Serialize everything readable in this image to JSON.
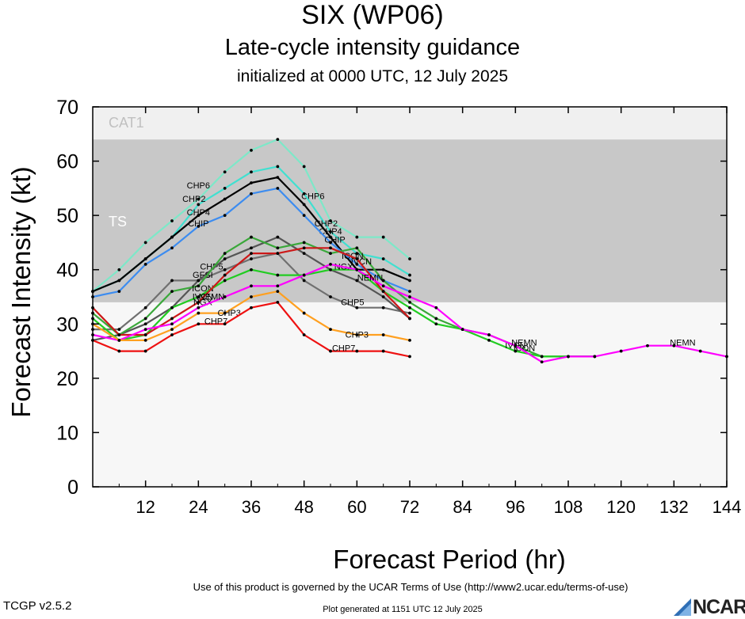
{
  "header": {
    "title": "SIX (WP06)",
    "subtitle": "Late-cycle intensity guidance",
    "init": "initialized at 0000 UTC, 12 July 2025"
  },
  "footer": {
    "terms": "Use of this product is governed by the UCAR Terms of Use (http://www2.ucar.edu/terms-of-use)",
    "version": "TCGP v2.5.2",
    "generated": "Plot generated at 1151 UTC   12 July 2025",
    "logo": "NCAR",
    "logo_icon": "ncar-logo-icon"
  },
  "chart_data": {
    "type": "line",
    "xlabel": "Forecast Period (hr)",
    "ylabel": "Forecast Intensity (kt)",
    "xlim": [
      0,
      144
    ],
    "ylim": [
      0,
      70
    ],
    "xticks": [
      12,
      24,
      36,
      48,
      60,
      72,
      84,
      96,
      108,
      120,
      132,
      144
    ],
    "yticks": [
      0,
      10,
      20,
      30,
      40,
      50,
      60,
      70
    ],
    "bands": [
      {
        "label": "TS",
        "from": 34,
        "to": 64,
        "color": "#c8c8c8"
      },
      {
        "label": "CAT1",
        "from": 64,
        "to": 70,
        "color": "#f0f0f0"
      }
    ],
    "background": "#f7f7f7",
    "series": [
      {
        "name": "CHP6",
        "color": "#7de8c8",
        "x": [
          0,
          6,
          12,
          18,
          24,
          30,
          36,
          42,
          48,
          54,
          60,
          66,
          72
        ],
        "y": [
          36,
          40,
          45,
          49,
          53,
          58,
          62,
          64,
          59,
          49,
          46,
          46,
          42
        ],
        "labels": [
          {
            "x": 24,
            "y": 55
          },
          {
            "x": 50,
            "y": 53
          }
        ]
      },
      {
        "name": "CHP2",
        "color": "#40e0d0",
        "x": [
          0,
          6,
          12,
          18,
          24,
          30,
          36,
          42,
          48,
          54,
          60,
          66,
          72
        ],
        "y": [
          36,
          38,
          42,
          46,
          52,
          55,
          58,
          59,
          54,
          47,
          43,
          42,
          39
        ],
        "labels": [
          {
            "x": 23,
            "y": 52.5
          },
          {
            "x": 53,
            "y": 48
          }
        ]
      },
      {
        "name": "CHP4",
        "color": "#000000",
        "x": [
          0,
          6,
          12,
          18,
          24,
          30,
          36,
          42,
          48,
          54,
          60,
          66,
          72
        ],
        "y": [
          36,
          38,
          42,
          46,
          50,
          53,
          56,
          57,
          52,
          46,
          40,
          40,
          38
        ],
        "labels": [
          {
            "x": 24,
            "y": 50
          },
          {
            "x": 54,
            "y": 46.5
          }
        ]
      },
      {
        "name": "CHIP",
        "color": "#3c8cf0",
        "x": [
          0,
          6,
          12,
          18,
          24,
          30,
          36,
          42,
          48,
          54,
          60,
          66,
          72
        ],
        "y": [
          35,
          36,
          41,
          44,
          48,
          50,
          54,
          55,
          50,
          45,
          41,
          38,
          36
        ],
        "labels": [
          {
            "x": 24,
            "y": 48
          },
          {
            "x": 55,
            "y": 45
          }
        ]
      },
      {
        "name": "CHP5",
        "color": "#707070",
        "x": [
          0,
          6,
          12,
          18,
          24,
          30,
          36,
          42,
          48,
          54,
          60,
          66,
          72
        ],
        "y": [
          29,
          29,
          33,
          38,
          38,
          40,
          42,
          43,
          38,
          35,
          33,
          33,
          32
        ],
        "labels": [
          {
            "x": 27,
            "y": 40
          },
          {
            "x": 59,
            "y": 33.5
          }
        ]
      },
      {
        "name": "GFSI",
        "color": "#555555",
        "x": [
          0,
          6,
          12,
          18,
          24,
          30,
          36,
          42,
          48,
          54,
          60,
          66,
          72
        ],
        "y": [
          27,
          28,
          30,
          33,
          38,
          42,
          44,
          46,
          43,
          40,
          38,
          35,
          31
        ],
        "labels": [
          {
            "x": 25,
            "y": 38.5
          }
        ]
      },
      {
        "name": "ICON",
        "color": "#3aa83a",
        "x": [
          0,
          6,
          12,
          18,
          24,
          30,
          36,
          42,
          48,
          54,
          60,
          66,
          72,
          78,
          84,
          90,
          96,
          102,
          108,
          114
        ],
        "y": [
          32,
          28,
          31,
          36,
          37,
          43,
          46,
          44,
          45,
          43,
          44,
          38,
          34,
          31,
          29,
          28,
          26,
          24,
          24,
          24
        ],
        "labels": [
          {
            "x": 25,
            "y": 36
          },
          {
            "x": 59,
            "y": 42
          },
          {
            "x": 98,
            "y": 25
          }
        ]
      },
      {
        "name": "IVCN",
        "color": "#22cc22",
        "x": [
          0,
          6,
          12,
          18,
          24,
          30,
          36,
          42,
          48,
          54,
          60,
          66,
          72,
          78,
          84,
          90,
          96,
          102,
          108,
          114
        ],
        "y": [
          31,
          27,
          28,
          33,
          35,
          38,
          40,
          39,
          39,
          40,
          40,
          36,
          33,
          30,
          29,
          27,
          25,
          24,
          24,
          24
        ],
        "labels": [
          {
            "x": 25,
            "y": 34.5
          },
          {
            "x": 61,
            "y": 41
          },
          {
            "x": 96,
            "y": 25.5
          }
        ]
      },
      {
        "name": "NGX",
        "color": "#cc1818",
        "x": [
          0,
          6,
          12,
          18,
          24,
          30,
          36,
          42,
          48,
          54,
          60,
          66,
          72
        ],
        "y": [
          33,
          28,
          28,
          31,
          34,
          39,
          43,
          43,
          44,
          44,
          42,
          36,
          31
        ],
        "labels": [
          {
            "x": 25,
            "y": 33.5
          },
          {
            "x": 57,
            "y": 40
          }
        ]
      },
      {
        "name": "NEMN",
        "color": "#ff00ff",
        "x": [
          0,
          6,
          12,
          18,
          24,
          30,
          36,
          42,
          48,
          54,
          60,
          66,
          72,
          78,
          84,
          90,
          96,
          102,
          108,
          114,
          120,
          126,
          132,
          138,
          144
        ],
        "y": [
          28,
          27,
          29,
          30,
          33,
          35,
          37,
          37,
          39,
          41,
          40,
          37,
          35,
          33,
          29,
          28,
          26,
          23,
          24,
          24,
          25,
          26,
          26,
          25,
          24
        ],
        "labels": [
          {
            "x": 27,
            "y": 34.5
          },
          {
            "x": 63,
            "y": 38
          },
          {
            "x": 98,
            "y": 26
          },
          {
            "x": 134,
            "y": 26
          }
        ]
      },
      {
        "name": "CHP3",
        "color": "#ffa020",
        "x": [
          0,
          6,
          12,
          18,
          24,
          30,
          36,
          42,
          48,
          54,
          60,
          66,
          72
        ],
        "y": [
          30,
          27,
          27,
          29,
          32,
          32,
          35,
          36,
          32,
          29,
          28,
          28,
          27
        ],
        "labels": [
          {
            "x": 31,
            "y": 31.5
          },
          {
            "x": 60,
            "y": 27.5
          }
        ]
      },
      {
        "name": "CHP7",
        "color": "#ee1111",
        "x": [
          0,
          6,
          12,
          18,
          24,
          30,
          36,
          42,
          48,
          54,
          60,
          66,
          72
        ],
        "y": [
          27,
          25,
          25,
          28,
          30,
          30,
          33,
          34,
          28,
          25,
          25,
          25,
          24
        ],
        "labels": [
          {
            "x": 28,
            "y": 30
          },
          {
            "x": 57,
            "y": 25
          }
        ]
      }
    ]
  }
}
